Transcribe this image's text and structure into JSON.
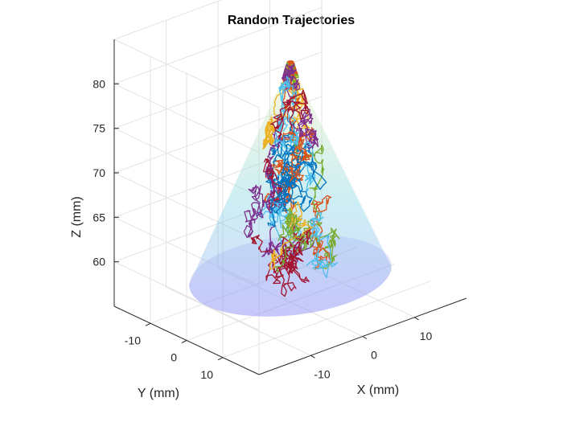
{
  "chart_data": {
    "type": "line",
    "subtype": "3d",
    "title": "Random Trajectories",
    "xlabel": "X (mm)",
    "ylabel": "Y (mm)",
    "zlabel": "Z (mm)",
    "xlim": [
      -20,
      20
    ],
    "ylim": [
      -20,
      20
    ],
    "zlim": [
      55,
      85
    ],
    "xticks": [
      "-10",
      "0",
      "10"
    ],
    "yticks": [
      "-10",
      "0",
      "10"
    ],
    "zticks": [
      "60",
      "65",
      "70",
      "75",
      "80"
    ],
    "grid": true,
    "view": "isometric 3-D",
    "cone_surface": {
      "apex": [
        0,
        0,
        82
      ],
      "base_radius": 16,
      "base_z": 58,
      "colormap": [
        "#8f8ff5",
        "#6fcfe0",
        "#f5ee9a"
      ],
      "opacity": 0.35
    },
    "trajectory_colors": [
      "#0072BD",
      "#D95319",
      "#EDB120",
      "#7E2F8E",
      "#77AC30",
      "#4DBEEE",
      "#A2142F"
    ],
    "trajectory_count": 35
  }
}
